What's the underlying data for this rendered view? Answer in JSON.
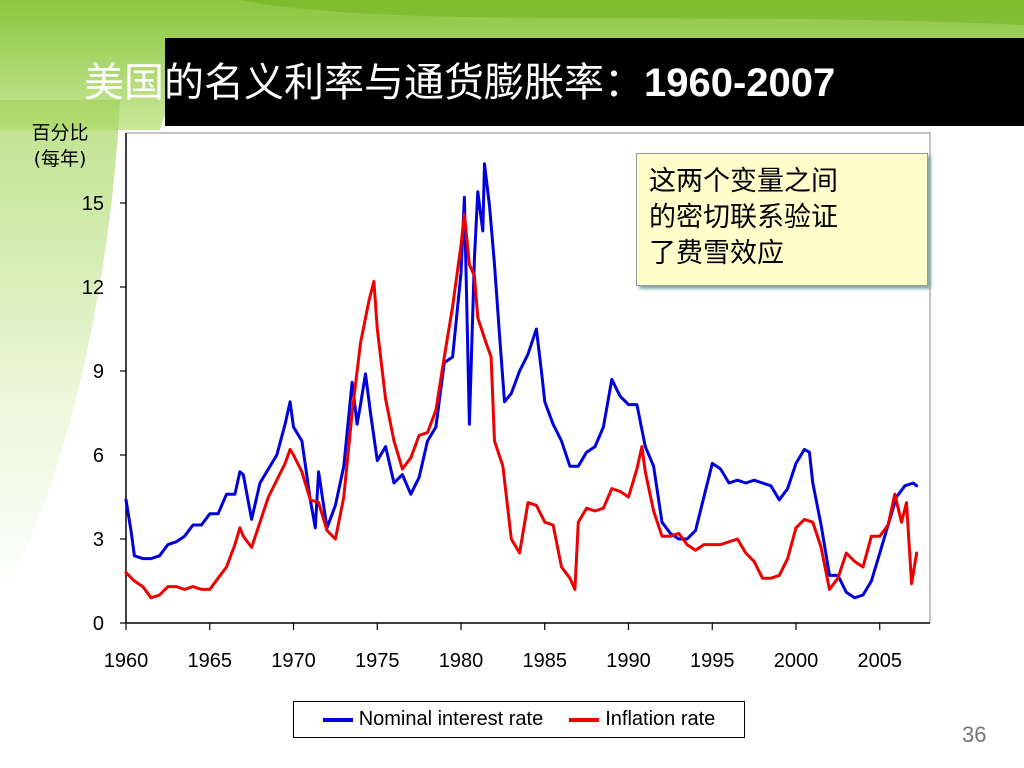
{
  "slide": {
    "title_main": "美国的名义利率与通货膨胀率：",
    "title_year": "1960-2007",
    "page_number": "36",
    "annotation": [
      "这两个变量之间",
      "的密切联系验证",
      "了费雪效应"
    ]
  },
  "colors": {
    "nominal": "#0000dd",
    "inflation": "#ee0000",
    "title_bar": "#000000",
    "green_top": "#7dbf2a",
    "annotation_bg": "#ffffcc"
  },
  "chart_data": {
    "type": "line",
    "ylabel_lines": [
      "百分比",
      "(每年)"
    ],
    "xlim": [
      1960,
      2008
    ],
    "ylim": [
      0,
      17.5
    ],
    "x_ticks": [
      1960,
      1965,
      1970,
      1975,
      1980,
      1985,
      1990,
      1995,
      2000,
      2005
    ],
    "y_ticks": [
      0,
      3,
      6,
      9,
      12,
      15
    ],
    "legend_position": "bottom",
    "grid": false,
    "series": [
      {
        "name": "Nominal interest rate",
        "color": "#0000dd",
        "points": [
          [
            1960.0,
            4.4
          ],
          [
            1960.3,
            3.3
          ],
          [
            1960.5,
            2.4
          ],
          [
            1961.0,
            2.3
          ],
          [
            1961.5,
            2.3
          ],
          [
            1962.0,
            2.4
          ],
          [
            1962.5,
            2.8
          ],
          [
            1963.0,
            2.9
          ],
          [
            1963.5,
            3.1
          ],
          [
            1964.0,
            3.5
          ],
          [
            1964.5,
            3.5
          ],
          [
            1965.0,
            3.9
          ],
          [
            1965.5,
            3.9
          ],
          [
            1966.0,
            4.6
          ],
          [
            1966.5,
            4.6
          ],
          [
            1966.8,
            5.4
          ],
          [
            1967.0,
            5.3
          ],
          [
            1967.5,
            3.7
          ],
          [
            1968.0,
            5.0
          ],
          [
            1968.5,
            5.5
          ],
          [
            1969.0,
            6.0
          ],
          [
            1969.5,
            7.1
          ],
          [
            1969.8,
            7.9
          ],
          [
            1970.0,
            7.0
          ],
          [
            1970.5,
            6.5
          ],
          [
            1971.0,
            4.4
          ],
          [
            1971.3,
            3.4
          ],
          [
            1971.5,
            5.4
          ],
          [
            1971.8,
            4.2
          ],
          [
            1972.0,
            3.4
          ],
          [
            1972.5,
            4.2
          ],
          [
            1973.0,
            5.6
          ],
          [
            1973.5,
            8.6
          ],
          [
            1973.8,
            7.1
          ],
          [
            1974.0,
            7.8
          ],
          [
            1974.3,
            8.9
          ],
          [
            1974.6,
            7.5
          ],
          [
            1975.0,
            5.8
          ],
          [
            1975.5,
            6.3
          ],
          [
            1976.0,
            5.0
          ],
          [
            1976.5,
            5.3
          ],
          [
            1977.0,
            4.6
          ],
          [
            1977.5,
            5.2
          ],
          [
            1978.0,
            6.5
          ],
          [
            1978.5,
            7.0
          ],
          [
            1979.0,
            9.3
          ],
          [
            1979.5,
            9.5
          ],
          [
            1980.0,
            12.5
          ],
          [
            1980.2,
            15.2
          ],
          [
            1980.5,
            7.1
          ],
          [
            1980.8,
            13.0
          ],
          [
            1981.0,
            15.4
          ],
          [
            1981.3,
            14.0
          ],
          [
            1981.4,
            16.4
          ],
          [
            1981.7,
            14.9
          ],
          [
            1982.0,
            12.8
          ],
          [
            1982.3,
            10.3
          ],
          [
            1982.6,
            7.9
          ],
          [
            1983.0,
            8.2
          ],
          [
            1983.5,
            9.0
          ],
          [
            1984.0,
            9.6
          ],
          [
            1984.5,
            10.5
          ],
          [
            1984.8,
            9.0
          ],
          [
            1985.0,
            7.9
          ],
          [
            1985.5,
            7.1
          ],
          [
            1986.0,
            6.5
          ],
          [
            1986.5,
            5.6
          ],
          [
            1987.0,
            5.6
          ],
          [
            1987.5,
            6.1
          ],
          [
            1988.0,
            6.3
          ],
          [
            1988.5,
            7.0
          ],
          [
            1989.0,
            8.7
          ],
          [
            1989.5,
            8.1
          ],
          [
            1990.0,
            7.8
          ],
          [
            1990.5,
            7.8
          ],
          [
            1991.0,
            6.3
          ],
          [
            1991.5,
            5.6
          ],
          [
            1992.0,
            3.6
          ],
          [
            1992.5,
            3.2
          ],
          [
            1993.0,
            3.0
          ],
          [
            1993.5,
            3.0
          ],
          [
            1994.0,
            3.3
          ],
          [
            1994.5,
            4.5
          ],
          [
            1995.0,
            5.7
          ],
          [
            1995.5,
            5.5
          ],
          [
            1996.0,
            5.0
          ],
          [
            1996.5,
            5.1
          ],
          [
            1997.0,
            5.0
          ],
          [
            1997.5,
            5.1
          ],
          [
            1998.0,
            5.0
          ],
          [
            1998.5,
            4.9
          ],
          [
            1999.0,
            4.4
          ],
          [
            1999.5,
            4.8
          ],
          [
            2000.0,
            5.7
          ],
          [
            2000.5,
            6.2
          ],
          [
            2000.8,
            6.1
          ],
          [
            2001.0,
            5.0
          ],
          [
            2001.5,
            3.5
          ],
          [
            2002.0,
            1.7
          ],
          [
            2002.5,
            1.7
          ],
          [
            2003.0,
            1.1
          ],
          [
            2003.5,
            0.9
          ],
          [
            2004.0,
            1.0
          ],
          [
            2004.5,
            1.5
          ],
          [
            2005.0,
            2.5
          ],
          [
            2005.5,
            3.5
          ],
          [
            2006.0,
            4.5
          ],
          [
            2006.5,
            4.9
          ],
          [
            2007.0,
            5.0
          ],
          [
            2007.2,
            4.9
          ]
        ]
      },
      {
        "name": "Inflation rate",
        "color": "#ee0000",
        "points": [
          [
            1960.0,
            1.8
          ],
          [
            1960.5,
            1.5
          ],
          [
            1961.0,
            1.3
          ],
          [
            1961.5,
            0.9
          ],
          [
            1962.0,
            1.0
          ],
          [
            1962.5,
            1.3
          ],
          [
            1963.0,
            1.3
          ],
          [
            1963.5,
            1.2
          ],
          [
            1964.0,
            1.3
          ],
          [
            1964.5,
            1.2
          ],
          [
            1965.0,
            1.2
          ],
          [
            1965.5,
            1.6
          ],
          [
            1966.0,
            2.0
          ],
          [
            1966.5,
            2.8
          ],
          [
            1966.8,
            3.4
          ],
          [
            1967.0,
            3.1
          ],
          [
            1967.5,
            2.7
          ],
          [
            1968.0,
            3.6
          ],
          [
            1968.5,
            4.5
          ],
          [
            1969.0,
            5.1
          ],
          [
            1969.5,
            5.7
          ],
          [
            1969.8,
            6.2
          ],
          [
            1970.0,
            6.0
          ],
          [
            1970.5,
            5.4
          ],
          [
            1971.0,
            4.4
          ],
          [
            1971.5,
            4.3
          ],
          [
            1972.0,
            3.3
          ],
          [
            1972.5,
            3.0
          ],
          [
            1973.0,
            4.5
          ],
          [
            1973.5,
            7.5
          ],
          [
            1974.0,
            10.0
          ],
          [
            1974.5,
            11.5
          ],
          [
            1974.8,
            12.2
          ],
          [
            1975.0,
            10.5
          ],
          [
            1975.5,
            8.0
          ],
          [
            1976.0,
            6.5
          ],
          [
            1976.5,
            5.5
          ],
          [
            1977.0,
            5.9
          ],
          [
            1977.5,
            6.7
          ],
          [
            1978.0,
            6.8
          ],
          [
            1978.5,
            7.6
          ],
          [
            1979.0,
            9.5
          ],
          [
            1979.5,
            11.3
          ],
          [
            1980.0,
            13.5
          ],
          [
            1980.2,
            14.6
          ],
          [
            1980.5,
            12.8
          ],
          [
            1980.8,
            12.4
          ],
          [
            1981.0,
            10.9
          ],
          [
            1981.5,
            10.0
          ],
          [
            1981.8,
            9.5
          ],
          [
            1982.0,
            6.5
          ],
          [
            1982.5,
            5.6
          ],
          [
            1983.0,
            3.0
          ],
          [
            1983.5,
            2.5
          ],
          [
            1984.0,
            4.3
          ],
          [
            1984.5,
            4.2
          ],
          [
            1985.0,
            3.6
          ],
          [
            1985.5,
            3.5
          ],
          [
            1986.0,
            2.0
          ],
          [
            1986.5,
            1.6
          ],
          [
            1986.8,
            1.2
          ],
          [
            1987.0,
            3.6
          ],
          [
            1987.5,
            4.1
          ],
          [
            1988.0,
            4.0
          ],
          [
            1988.5,
            4.1
          ],
          [
            1989.0,
            4.8
          ],
          [
            1989.5,
            4.7
          ],
          [
            1990.0,
            4.5
          ],
          [
            1990.5,
            5.5
          ],
          [
            1990.8,
            6.3
          ],
          [
            1991.0,
            5.4
          ],
          [
            1991.5,
            4.0
          ],
          [
            1992.0,
            3.1
          ],
          [
            1992.5,
            3.1
          ],
          [
            1993.0,
            3.2
          ],
          [
            1993.5,
            2.8
          ],
          [
            1994.0,
            2.6
          ],
          [
            1994.5,
            2.8
          ],
          [
            1995.0,
            2.8
          ],
          [
            1995.5,
            2.8
          ],
          [
            1996.0,
            2.9
          ],
          [
            1996.5,
            3.0
          ],
          [
            1997.0,
            2.5
          ],
          [
            1997.5,
            2.2
          ],
          [
            1998.0,
            1.6
          ],
          [
            1998.5,
            1.6
          ],
          [
            1999.0,
            1.7
          ],
          [
            1999.5,
            2.3
          ],
          [
            2000.0,
            3.4
          ],
          [
            2000.5,
            3.7
          ],
          [
            2001.0,
            3.6
          ],
          [
            2001.5,
            2.7
          ],
          [
            2002.0,
            1.2
          ],
          [
            2002.5,
            1.6
          ],
          [
            2003.0,
            2.5
          ],
          [
            2003.5,
            2.2
          ],
          [
            2004.0,
            2.0
          ],
          [
            2004.5,
            3.1
          ],
          [
            2005.0,
            3.1
          ],
          [
            2005.5,
            3.5
          ],
          [
            2005.9,
            4.6
          ],
          [
            2006.3,
            3.6
          ],
          [
            2006.6,
            4.3
          ],
          [
            2006.9,
            1.4
          ],
          [
            2007.2,
            2.5
          ]
        ]
      }
    ]
  }
}
